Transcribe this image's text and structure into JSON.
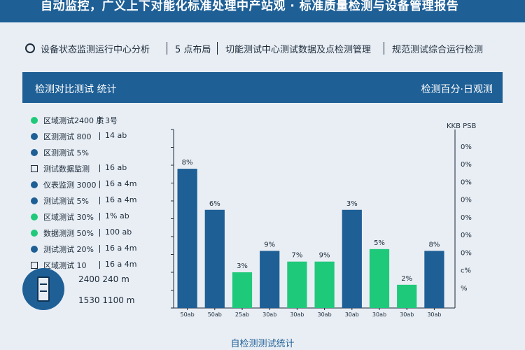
{
  "header": {
    "title": "自动监控，广义上下对能化标准处理中产站观 · 标准质量检测与设备管理报告"
  },
  "subbar": {
    "item1": "设备状态监测运行中心分析",
    "item2": "5 点布局",
    "item3": "切能测试中心测试数据及点检测管理",
    "item4": "规范测试综合运行检测"
  },
  "panel": {
    "left_title": "检测对比测试 统计",
    "right_title": "检测百分·日观测"
  },
  "legend": [
    {
      "label": "区域测试2400 质",
      "value": "3号",
      "color": "#1fc97a",
      "marker": "dot"
    },
    {
      "label": "区测测试 800",
      "value": "14 ab",
      "color": "#1e5f96",
      "marker": "dot"
    },
    {
      "label": "区测测试 5%",
      "value": "",
      "color": "#1e5f96",
      "marker": "dot"
    },
    {
      "label": "测试数据监测",
      "value": "16 ab",
      "color": "#1c2b3a",
      "marker": "square"
    },
    {
      "label": "仪表监测 3000",
      "value": "16 a 4m",
      "color": "#1e5f96",
      "marker": "dot"
    },
    {
      "label": "测试测试 5%",
      "value": "16 a 4m",
      "color": "#1e5f96",
      "marker": "dot"
    },
    {
      "label": "区域测试 30%",
      "value": "1% ab",
      "color": "#1fc97a",
      "marker": "dot"
    },
    {
      "label": "数据测测 50%",
      "value": "100 ab",
      "color": "#1fc97a",
      "marker": "dot"
    },
    {
      "label": "测试测试 20%",
      "value": "16 a 4m",
      "color": "#1e5f96",
      "marker": "dot"
    },
    {
      "label": "区域测试 10",
      "value": "16 a 4m",
      "color": "#1c2b3a",
      "marker": "square"
    }
  ],
  "device_info": {
    "line1": "2400 240 m",
    "line2": "1530 1100 m"
  },
  "footer": {
    "caption": "自检测测试统计"
  },
  "chart_data": {
    "type": "bar",
    "categories": [
      "50ab",
      "50ab",
      "25ab",
      "30ab",
      "30ab",
      "30ab",
      "30ab",
      "30ab",
      "30ab",
      "30ab"
    ],
    "series": [
      {
        "values": [
          78,
          55,
          0,
          32,
          0,
          0,
          55,
          0,
          0,
          32
        ]
      },
      {
        "values": [
          0,
          0,
          20,
          0,
          26,
          26,
          0,
          33,
          13,
          0
        ]
      }
    ],
    "data_labels": [
      "8%",
      "6%",
      "3%",
      "9%",
      "7%",
      "9%",
      "3%",
      "5%",
      "2%",
      "8%"
    ],
    "bar_colors": [
      "#1e5f96",
      "#1e5f96",
      "#1fc97a",
      "#1e5f96",
      "#1fc97a",
      "#1fc97a",
      "#1e5f96",
      "#1fc97a",
      "#1fc97a",
      "#1e5f96"
    ],
    "left_ticks": [
      "",
      "",
      "",
      "",
      "",
      "",
      "",
      "",
      "",
      "",
      ""
    ],
    "right_ticks": [
      "0%",
      "0%",
      "0%",
      "0%",
      "0%",
      "0%",
      "0%",
      "c%",
      "%"
    ],
    "right_header": "KKB  PSB",
    "ylim": [
      0,
      100
    ],
    "grid": false,
    "colors": {
      "primary": "#1e5f96",
      "accent": "#1fc97a"
    }
  }
}
